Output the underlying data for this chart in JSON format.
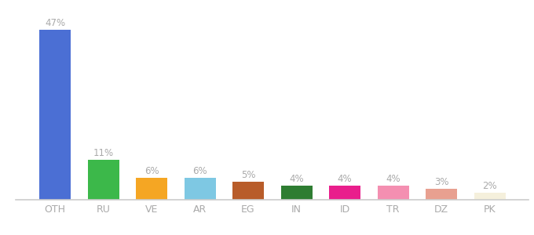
{
  "categories": [
    "OTH",
    "RU",
    "VE",
    "AR",
    "EG",
    "IN",
    "ID",
    "TR",
    "DZ",
    "PK"
  ],
  "values": [
    47,
    11,
    6,
    6,
    5,
    4,
    4,
    4,
    3,
    2
  ],
  "bar_colors": [
    "#4B6FD4",
    "#3CB84A",
    "#F5A623",
    "#7EC8E3",
    "#B85C2A",
    "#2E7D32",
    "#E91E8C",
    "#F48FB1",
    "#E8A090",
    "#F5F0DC"
  ],
  "ylim": [
    0,
    52
  ],
  "background_color": "#ffffff",
  "label_color": "#aaaaaa",
  "label_fontsize": 8.5,
  "tick_fontsize": 9,
  "tick_color": "#aaaaaa"
}
